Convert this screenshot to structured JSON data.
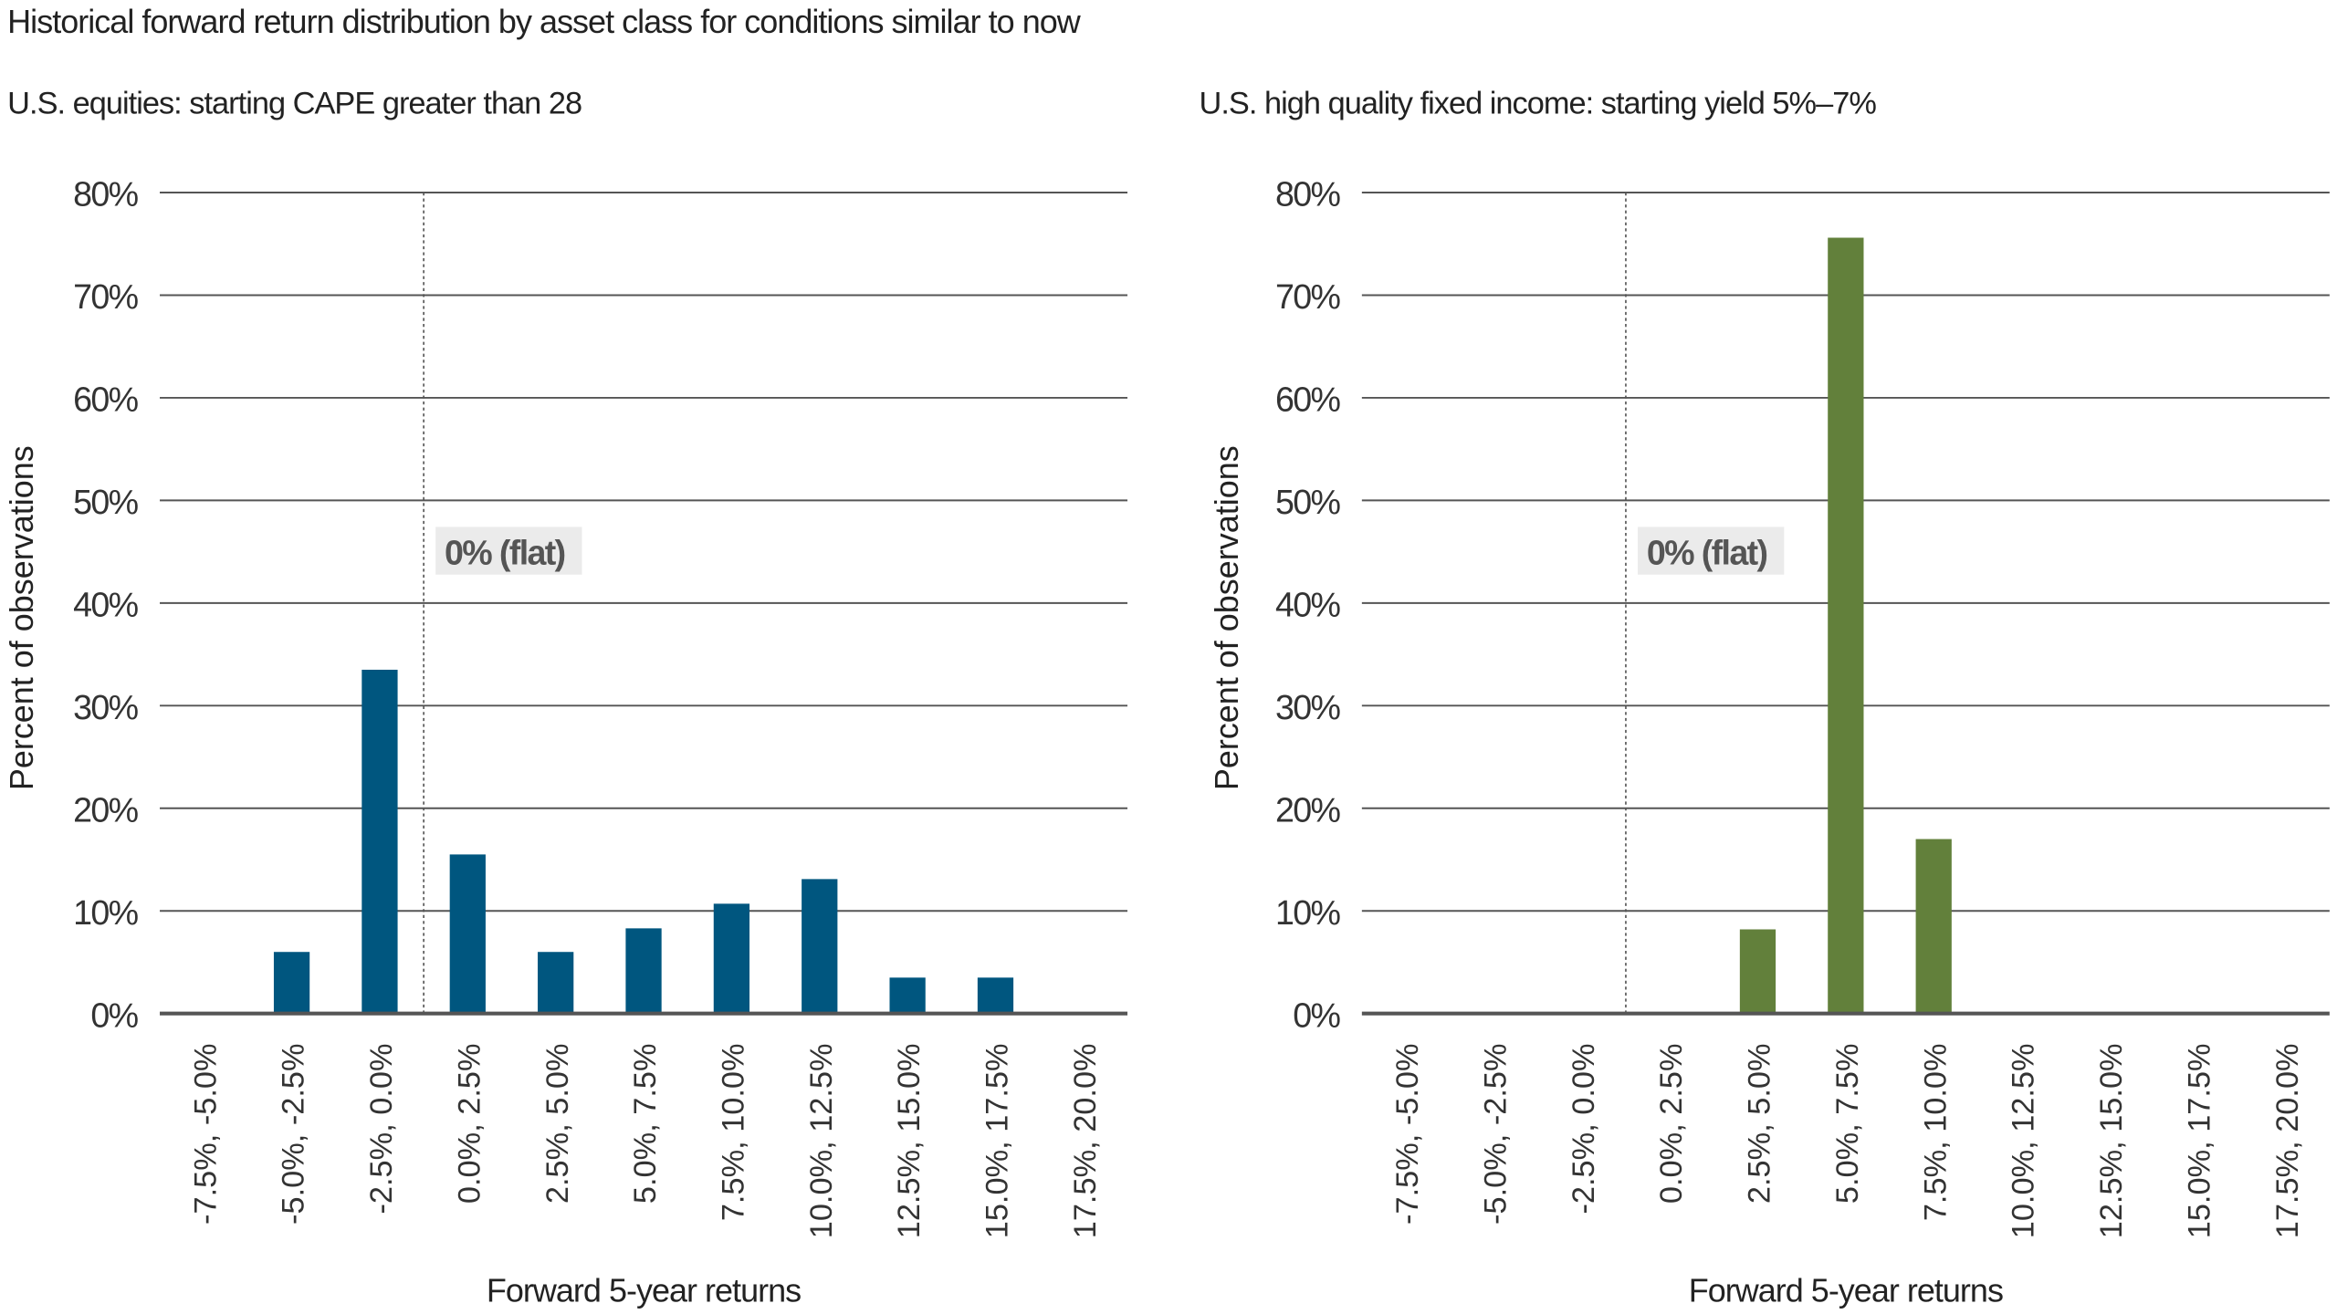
{
  "title": "Historical forward return distribution by asset class for conditions similar to now",
  "chart_data": [
    {
      "type": "bar",
      "title": "U.S. equities: starting CAPE greater than 28",
      "xlabel": "Forward 5-year returns",
      "ylabel": "Percent of observations",
      "categories": [
        "-7.5%, -5.0%",
        "-5.0%, -2.5%",
        "-2.5%, 0.0%",
        "0.0%, 2.5%",
        "2.5%, 5.0%",
        "5.0%, 7.5%",
        "7.5%, 10.0%",
        "10.0%, 12.5%",
        "12.5%, 15.0%",
        "15.0%, 17.5%",
        "17.5%, 20.0%"
      ],
      "values": [
        0,
        6.0,
        33.5,
        15.5,
        6.0,
        8.3,
        10.7,
        13.1,
        3.5,
        3.5,
        0
      ],
      "ylim": [
        0,
        80
      ],
      "yticks": [
        "0%",
        "10%",
        "20%",
        "30%",
        "40%",
        "50%",
        "60%",
        "70%",
        "80%"
      ],
      "grid": true,
      "color": "#00567f",
      "annotation": "0% (flat)"
    },
    {
      "type": "bar",
      "title": "U.S. high quality fixed income: starting yield 5%–7%",
      "xlabel": "Forward 5-year returns",
      "ylabel": "Percent of observations",
      "categories": [
        "-7.5%, -5.0%",
        "-5.0%, -2.5%",
        "-2.5%, 0.0%",
        "0.0%, 2.5%",
        "2.5%, 5.0%",
        "5.0%, 7.5%",
        "7.5%, 10.0%",
        "10.0%, 12.5%",
        "12.5%, 15.0%",
        "15.0%, 17.5%",
        "17.5%, 20.0%"
      ],
      "values": [
        0,
        0,
        0,
        0,
        8.2,
        75.6,
        17.0,
        0,
        0,
        0,
        0
      ],
      "ylim": [
        0,
        80
      ],
      "yticks": [
        "0%",
        "10%",
        "20%",
        "30%",
        "40%",
        "50%",
        "60%",
        "70%",
        "80%"
      ],
      "grid": true,
      "color": "#62803b",
      "annotation": "0% (flat)"
    }
  ]
}
